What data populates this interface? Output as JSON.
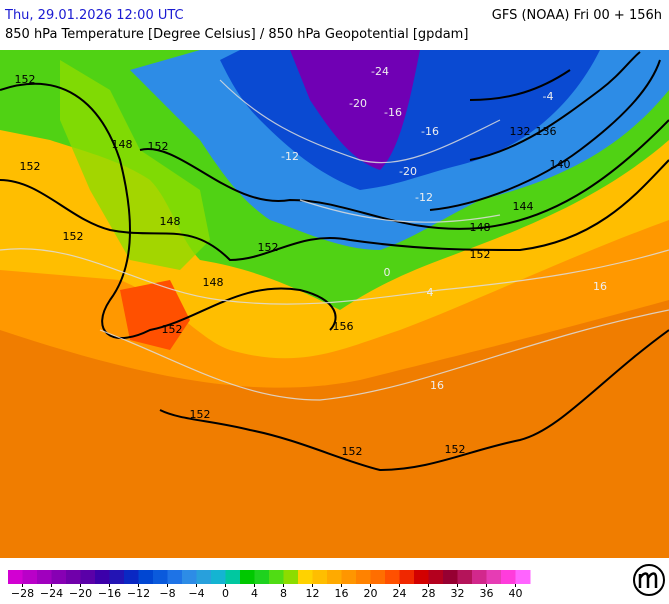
{
  "header": {
    "datetime": "Thu, 29.01.2026 12:00 UTC",
    "model": "GFS (NOAA) Fri 00 + 156h",
    "subtitle": "850 hPa Temperature [Degree Celsius] / 850 hPa Geopotential [gpdam]"
  },
  "geopotential_labels": [
    152,
    152,
    148,
    152,
    152,
    148,
    152,
    148,
    152,
    156,
    152,
    152,
    152,
    152,
    148,
    144,
    140,
    136,
    132
  ],
  "temperature_labels": [
    -24,
    -20,
    -16,
    -16,
    -20,
    -12,
    -12,
    0,
    4,
    16,
    16,
    -4
  ],
  "colorbar": {
    "range": [
      -30,
      42
    ],
    "colors": [
      "#d200d2",
      "#b900c8",
      "#a000be",
      "#8700b4",
      "#7000aa",
      "#5a00a8",
      "#3c00aa",
      "#2314b4",
      "#0a28c3",
      "#0046d2",
      "#0a5adc",
      "#1e73e6",
      "#2d8ce6",
      "#28a0dc",
      "#14b4d2",
      "#00c8a0",
      "#00c800",
      "#1ed21e",
      "#50dc14",
      "#8cdc00",
      "#ffd200",
      "#ffbe00",
      "#ffaa00",
      "#ff9600",
      "#ff8200",
      "#ff6e00",
      "#ff5000",
      "#f02800",
      "#d20000",
      "#b4001e",
      "#960032",
      "#b4145a",
      "#d2288c",
      "#e63cb4",
      "#ff3cdc",
      "#ff64ff"
    ],
    "ticks": [
      {
        "value": -28,
        "label": "−28"
      },
      {
        "value": -24,
        "label": "−24"
      },
      {
        "value": -20,
        "label": "−20"
      },
      {
        "value": -16,
        "label": "−16"
      },
      {
        "value": -12,
        "label": "−12"
      },
      {
        "value": -8,
        "label": "−8"
      },
      {
        "value": -4,
        "label": "−4"
      },
      0,
      4,
      8,
      12,
      16,
      20,
      24,
      28,
      32,
      36,
      40
    ]
  }
}
